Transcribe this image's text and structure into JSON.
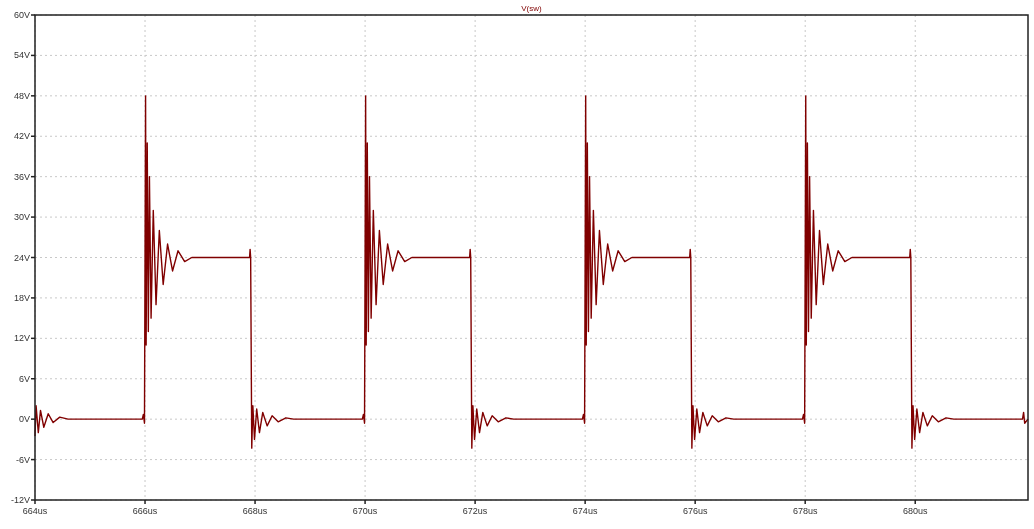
{
  "chart_data": {
    "type": "line",
    "legend": "top",
    "grid": true,
    "line_style": "solid",
    "xlim": [
      664,
      682.05
    ],
    "xticks": [
      {
        "value": 664,
        "label": "664us"
      },
      {
        "value": 666,
        "label": "666us"
      },
      {
        "value": 668,
        "label": "668us"
      },
      {
        "value": 670,
        "label": "670us"
      },
      {
        "value": 672,
        "label": "672us"
      },
      {
        "value": 674,
        "label": "674us"
      },
      {
        "value": 676,
        "label": "676us"
      },
      {
        "value": 678,
        "label": "678us"
      },
      {
        "value": 680,
        "label": "680us"
      }
    ],
    "ylim": [
      -12,
      60
    ],
    "yticks": [
      {
        "value": -12,
        "label": "-12V"
      },
      {
        "value": -6,
        "label": "-6V"
      },
      {
        "value": 0,
        "label": "0V"
      },
      {
        "value": 6,
        "label": "6V"
      },
      {
        "value": 12,
        "label": "12V"
      },
      {
        "value": 18,
        "label": "18V"
      },
      {
        "value": 24,
        "label": "24V"
      },
      {
        "value": 30,
        "label": "30V"
      },
      {
        "value": 36,
        "label": "36V"
      },
      {
        "value": 42,
        "label": "42V"
      },
      {
        "value": 48,
        "label": "48V"
      },
      {
        "value": 54,
        "label": "54V"
      },
      {
        "value": 60,
        "label": "60V"
      }
    ],
    "series": [
      {
        "name": "V(sw)",
        "color": "#800000",
        "x": [
          664,
          664.02,
          664.06,
          664.1,
          664.16,
          664.24,
          664.33,
          664.45,
          664.6,
          665.95,
          665.97,
          665.99,
          666.01,
          666.02,
          666.04,
          666.06,
          666.08,
          666.11,
          666.15,
          666.2,
          666.26,
          666.33,
          666.41,
          666.5,
          666.6,
          666.72,
          666.85,
          667.9,
          667.91,
          667.92,
          667.94,
          667.96,
          667.99,
          668.03,
          668.08,
          668.14,
          668.22,
          668.31,
          668.42,
          668.56,
          668.7,
          669.95,
          669.97,
          669.99,
          670.01,
          670.02,
          670.04,
          670.06,
          670.08,
          670.11,
          670.15,
          670.2,
          670.26,
          670.33,
          670.41,
          670.5,
          670.6,
          670.72,
          670.85,
          671.9,
          671.91,
          671.92,
          671.94,
          671.96,
          671.99,
          672.03,
          672.08,
          672.14,
          672.22,
          672.31,
          672.42,
          672.56,
          672.7,
          673.95,
          673.97,
          673.99,
          674.01,
          674.02,
          674.04,
          674.06,
          674.08,
          674.11,
          674.15,
          674.2,
          674.26,
          674.33,
          674.41,
          674.5,
          674.6,
          674.72,
          674.85,
          675.9,
          675.91,
          675.92,
          675.94,
          675.96,
          675.99,
          676.03,
          676.08,
          676.14,
          676.22,
          676.31,
          676.42,
          676.56,
          676.7,
          677.95,
          677.97,
          677.99,
          678.01,
          678.02,
          678.04,
          678.06,
          678.08,
          678.11,
          678.15,
          678.2,
          678.26,
          678.33,
          678.41,
          678.5,
          678.6,
          678.72,
          678.85,
          679.9,
          679.91,
          679.92,
          679.94,
          679.96,
          679.99,
          680.03,
          680.08,
          680.14,
          680.22,
          680.31,
          680.42,
          680.56,
          680.7,
          681.95,
          681.97,
          681.99,
          682.05
        ],
        "values": [
          -2.5,
          2,
          -2,
          1.3,
          -1.2,
          0.8,
          -0.5,
          0.3,
          0,
          0,
          0.7,
          -0.6,
          48,
          11,
          41,
          13,
          36,
          15,
          31,
          17,
          28,
          20,
          26,
          22,
          25,
          23.4,
          24,
          24,
          25.2,
          24,
          -4.3,
          2,
          -3,
          1.5,
          -2,
          1,
          -1,
          0.5,
          -0.4,
          0.2,
          0,
          0,
          0.7,
          -0.6,
          48,
          11,
          41,
          13,
          36,
          15,
          31,
          17,
          28,
          20,
          26,
          22,
          25,
          23.4,
          24,
          24,
          25.2,
          24,
          -4.3,
          2,
          -3,
          1.5,
          -2,
          1,
          -1,
          0.5,
          -0.4,
          0.2,
          0,
          0,
          0.7,
          -0.6,
          48,
          11,
          41,
          13,
          36,
          15,
          31,
          17,
          28,
          20,
          26,
          22,
          25,
          23.4,
          24,
          24,
          25.2,
          24,
          -4.3,
          2,
          -3,
          1.5,
          -2,
          1,
          -1,
          0.5,
          -0.4,
          0.2,
          0,
          0,
          0.7,
          -0.6,
          48,
          11,
          41,
          13,
          36,
          15,
          31,
          17,
          28,
          20,
          26,
          22,
          25,
          23.4,
          24,
          24,
          25.2,
          24,
          -4.3,
          2,
          -3,
          1.5,
          -2,
          1,
          -1,
          0.5,
          -0.4,
          0.2,
          0,
          0,
          1,
          -0.6,
          0
        ]
      }
    ]
  }
}
